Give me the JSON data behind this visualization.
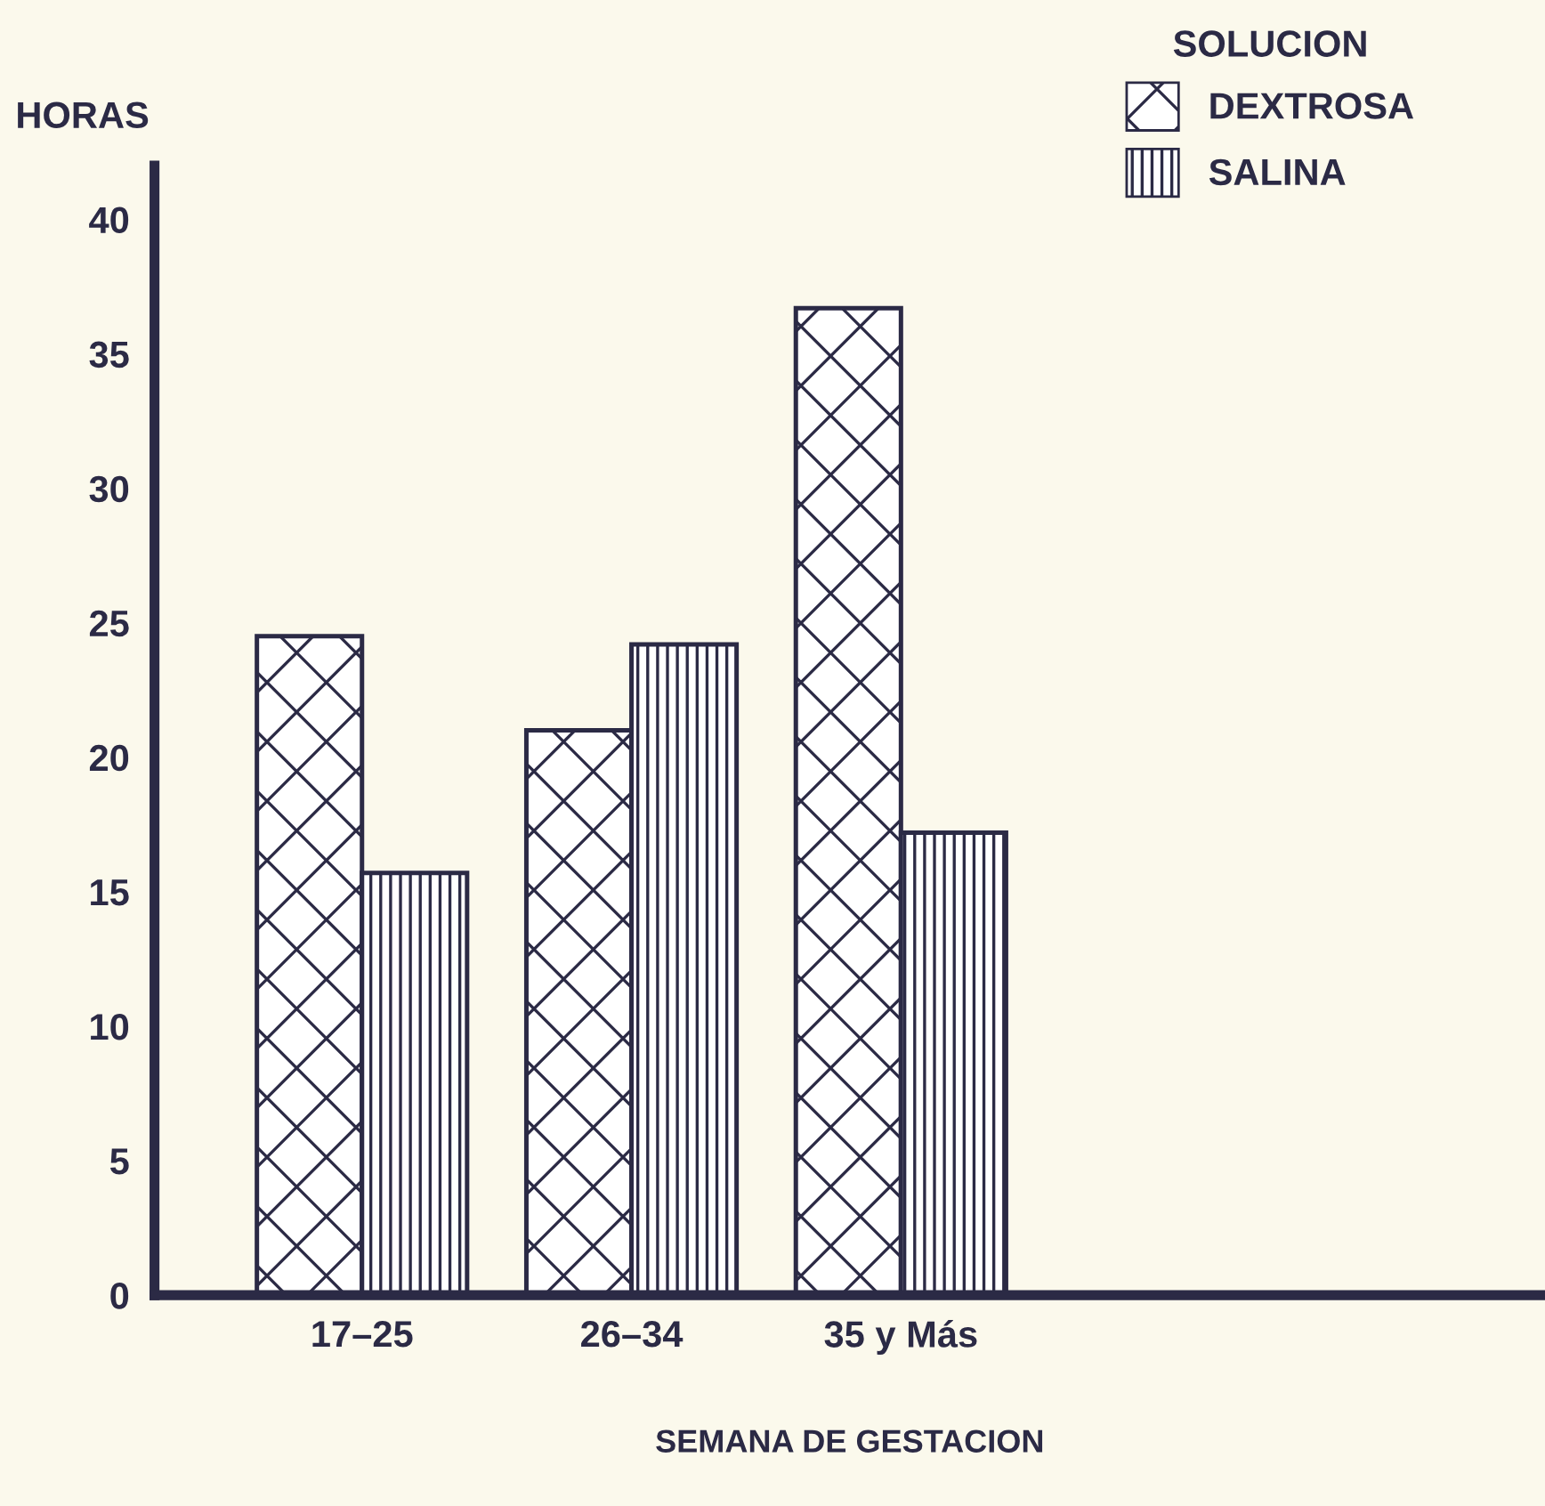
{
  "chart_data": {
    "type": "bar",
    "ylabel": "HORAS",
    "xlabel": "SEMANA DE GESTACION",
    "legend_title": "SOLUCION",
    "categories": [
      "17–25",
      "26–34",
      "35 y Más"
    ],
    "series": [
      {
        "name": "DEXTROSA",
        "color": "#2b2a45",
        "values": [
          24.5,
          21,
          36.7
        ]
      },
      {
        "name": "SALINA",
        "color": "#2b2a45",
        "values": [
          15.7,
          24.2,
          17.2
        ]
      }
    ],
    "ylim": [
      0,
      42
    ],
    "yticks": [
      0,
      5,
      10,
      15,
      20,
      25,
      30,
      35,
      40
    ],
    "grid": false,
    "legend": "top right"
  }
}
